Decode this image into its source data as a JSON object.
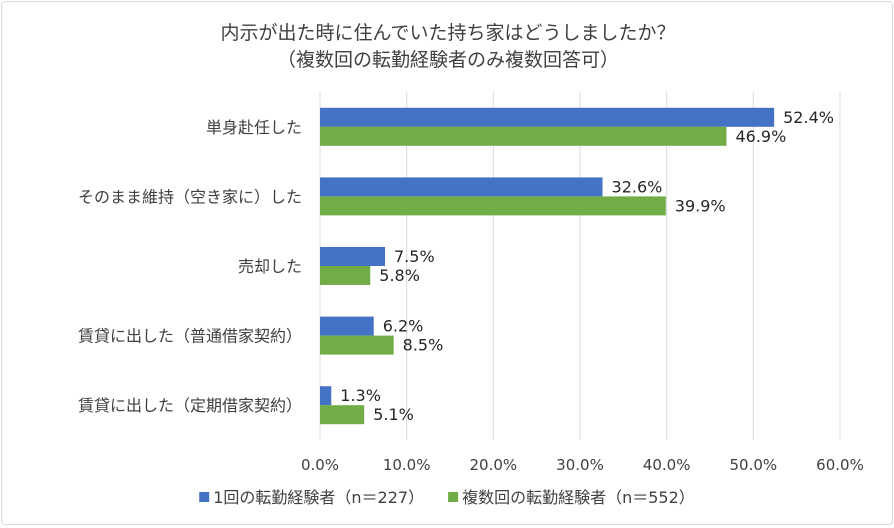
{
  "chart_data": {
    "type": "bar",
    "orientation": "horizontal",
    "title_lines": [
      "内示が出た時に住んでいた持ち家はどうしましたか？",
      "（複数回の転勤経験者のみ複数回答可）"
    ],
    "categories": [
      "単身赴任した",
      "そのまま維持（空き家に）した",
      "売却した",
      "賃貸に出した（普通借家契約）",
      "賃貸に出した（定期借家契約）"
    ],
    "series": [
      {
        "name": "1回の転勤経験者（n＝227）",
        "color": "#4472c4",
        "values": [
          52.4,
          32.6,
          7.5,
          6.2,
          1.3
        ],
        "labels": [
          "52.4%",
          "32.6%",
          "7.5%",
          "6.2%",
          "1.3%"
        ]
      },
      {
        "name": "複数回の転勤経験者（n＝552）",
        "color": "#70ad47",
        "values": [
          46.9,
          39.9,
          5.8,
          8.5,
          5.1
        ],
        "labels": [
          "46.9%",
          "39.9%",
          "5.8%",
          "8.5%",
          "5.1%"
        ]
      }
    ],
    "xlim": [
      0,
      60
    ],
    "xticks": [
      0,
      10,
      20,
      30,
      40,
      50,
      60
    ],
    "xtick_labels": [
      "0.0%",
      "10.0%",
      "20.0%",
      "30.0%",
      "40.0%",
      "50.0%",
      "60.0%"
    ],
    "grid": true,
    "legend_position": "bottom"
  }
}
